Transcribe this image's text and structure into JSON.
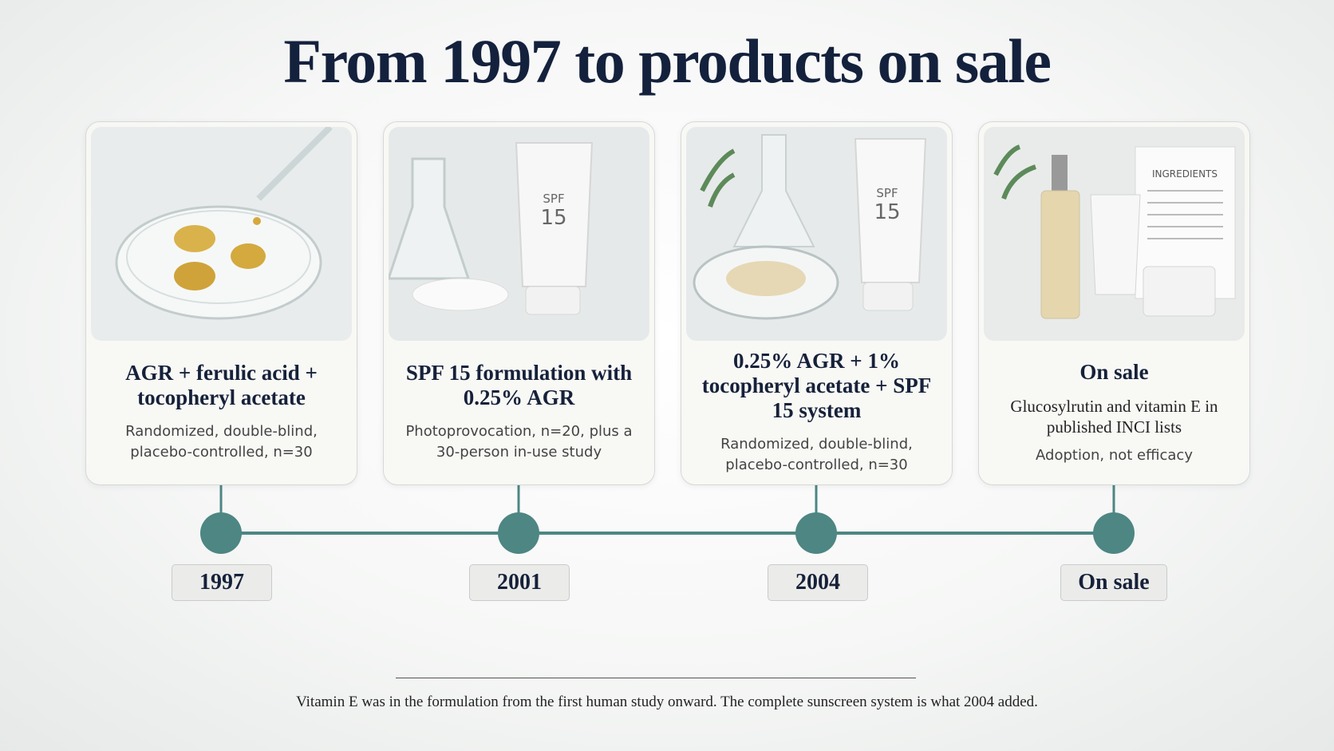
{
  "title": "From 1997 to products on sale",
  "cards": [
    {
      "heading": "AGR + ferulic acid + tocopheryl acetate",
      "description": "Randomized, double-blind, placebo-controlled, n=30",
      "year": "1997"
    },
    {
      "heading": "SPF 15 formulation with 0.25% AGR",
      "description": "Photoprovocation, n=20, plus a 30-person in-use study",
      "year": "2001",
      "image_text": [
        "SPF",
        "15"
      ]
    },
    {
      "heading": "0.25% AGR + 1% tocopheryl acetate + SPF 15 system",
      "description": "Randomized, double-blind, placebo-controlled, n=30",
      "year": "2004",
      "image_text": [
        "SPF",
        "15"
      ]
    },
    {
      "heading": "On sale",
      "description": "Glucosylrutin and vitamin E in published INCI lists",
      "note": "Adoption, not efficacy",
      "year": "On sale",
      "image_text": [
        "INGREDIENTS"
      ]
    }
  ],
  "footnote": "Vitamin E was in the formulation from the first human study onward. The complete sunscreen system is what 2004 added."
}
